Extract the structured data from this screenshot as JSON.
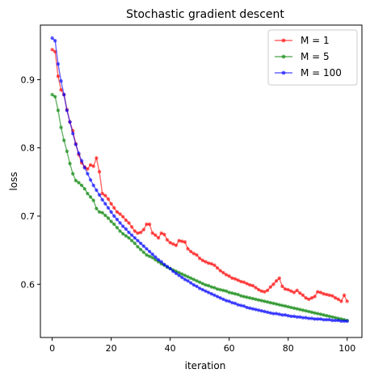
{
  "chart_data": {
    "type": "line",
    "title": "Stochastic gradient descent",
    "xlabel": "iteration",
    "ylabel": "loss",
    "xlim": [
      -4,
      105
    ],
    "ylim": [
      0.522,
      0.98
    ],
    "xticks": [
      0,
      20,
      40,
      60,
      80,
      100
    ],
    "yticks": [
      0.6,
      0.7,
      0.8,
      0.9
    ],
    "xtick_labels": [
      "0",
      "20",
      "40",
      "60",
      "80",
      "100"
    ],
    "ytick_labels": [
      "0.6",
      "0.7",
      "0.8",
      "0.9"
    ],
    "grid": false,
    "legend_position": "top-right",
    "series": [
      {
        "name": "M = 1",
        "color": "#ff0000",
        "x": [
          0,
          1,
          2,
          3,
          4,
          5,
          6,
          7,
          8,
          9,
          10,
          11,
          12,
          13,
          14,
          15,
          16,
          17,
          18,
          19,
          20,
          21,
          22,
          23,
          24,
          25,
          26,
          27,
          28,
          29,
          30,
          31,
          32,
          33,
          34,
          35,
          36,
          37,
          38,
          39,
          40,
          41,
          42,
          43,
          44,
          45,
          46,
          47,
          48,
          49,
          50,
          51,
          52,
          53,
          54,
          55,
          56,
          57,
          58,
          59,
          60,
          61,
          62,
          63,
          64,
          65,
          66,
          67,
          68,
          69,
          70,
          71,
          72,
          73,
          74,
          75,
          76,
          77,
          78,
          79,
          80,
          81,
          82,
          83,
          84,
          85,
          86,
          87,
          88,
          89,
          90,
          91,
          92,
          93,
          94,
          95,
          96,
          97,
          98,
          99,
          100
        ],
        "y": [
          0.944,
          0.941,
          0.905,
          0.885,
          0.878,
          0.856,
          0.838,
          0.825,
          0.806,
          0.79,
          0.778,
          0.772,
          0.769,
          0.775,
          0.773,
          0.785,
          0.765,
          0.733,
          0.73,
          0.725,
          0.718,
          0.712,
          0.706,
          0.703,
          0.699,
          0.694,
          0.69,
          0.684,
          0.678,
          0.675,
          0.676,
          0.68,
          0.688,
          0.688,
          0.675,
          0.672,
          0.668,
          0.675,
          0.673,
          0.665,
          0.661,
          0.659,
          0.657,
          0.664,
          0.663,
          0.662,
          0.652,
          0.648,
          0.645,
          0.643,
          0.638,
          0.635,
          0.633,
          0.631,
          0.63,
          0.628,
          0.624,
          0.62,
          0.617,
          0.614,
          0.612,
          0.609,
          0.608,
          0.606,
          0.604,
          0.603,
          0.601,
          0.599,
          0.598,
          0.595,
          0.592,
          0.59,
          0.589,
          0.591,
          0.596,
          0.6,
          0.605,
          0.609,
          0.597,
          0.593,
          0.592,
          0.59,
          0.588,
          0.591,
          0.587,
          0.584,
          0.58,
          0.578,
          0.58,
          0.582,
          0.589,
          0.588,
          0.586,
          0.585,
          0.584,
          0.583,
          0.58,
          0.578,
          0.575,
          0.584,
          0.575
        ]
      },
      {
        "name": "M = 5",
        "color": "#008000",
        "x": [
          0,
          1,
          2,
          3,
          4,
          5,
          6,
          7,
          8,
          9,
          10,
          11,
          12,
          13,
          14,
          15,
          16,
          17,
          18,
          19,
          20,
          21,
          22,
          23,
          24,
          25,
          26,
          27,
          28,
          29,
          30,
          31,
          32,
          33,
          34,
          35,
          36,
          37,
          38,
          39,
          40,
          41,
          42,
          43,
          44,
          45,
          46,
          47,
          48,
          49,
          50,
          51,
          52,
          53,
          54,
          55,
          56,
          57,
          58,
          59,
          60,
          61,
          62,
          63,
          64,
          65,
          66,
          67,
          68,
          69,
          70,
          71,
          72,
          73,
          74,
          75,
          76,
          77,
          78,
          79,
          80,
          81,
          82,
          83,
          84,
          85,
          86,
          87,
          88,
          89,
          90,
          91,
          92,
          93,
          94,
          95,
          96,
          97,
          98,
          99,
          100
        ],
        "y": [
          0.878,
          0.875,
          0.855,
          0.83,
          0.811,
          0.795,
          0.777,
          0.762,
          0.752,
          0.749,
          0.745,
          0.74,
          0.733,
          0.728,
          0.723,
          0.711,
          0.706,
          0.705,
          0.701,
          0.697,
          0.692,
          0.688,
          0.683,
          0.678,
          0.674,
          0.671,
          0.668,
          0.664,
          0.66,
          0.655,
          0.651,
          0.647,
          0.643,
          0.641,
          0.639,
          0.636,
          0.633,
          0.63,
          0.628,
          0.625,
          0.623,
          0.621,
          0.619,
          0.617,
          0.615,
          0.613,
          0.611,
          0.609,
          0.607,
          0.605,
          0.603,
          0.601,
          0.599,
          0.598,
          0.596,
          0.595,
          0.593,
          0.592,
          0.591,
          0.59,
          0.588,
          0.587,
          0.586,
          0.585,
          0.583,
          0.582,
          0.581,
          0.58,
          0.579,
          0.578,
          0.577,
          0.576,
          0.575,
          0.574,
          0.573,
          0.572,
          0.571,
          0.57,
          0.569,
          0.568,
          0.567,
          0.566,
          0.565,
          0.564,
          0.563,
          0.562,
          0.561,
          0.56,
          0.559,
          0.558,
          0.557,
          0.556,
          0.555,
          0.554,
          0.553,
          0.552,
          0.551,
          0.55,
          0.549,
          0.548,
          0.547
        ]
      },
      {
        "name": "M = 100",
        "color": "#0000ff",
        "x": [
          0,
          1,
          2,
          3,
          4,
          5,
          6,
          7,
          8,
          9,
          10,
          11,
          12,
          13,
          14,
          15,
          16,
          17,
          18,
          19,
          20,
          21,
          22,
          23,
          24,
          25,
          26,
          27,
          28,
          29,
          30,
          31,
          32,
          33,
          34,
          35,
          36,
          37,
          38,
          39,
          40,
          41,
          42,
          43,
          44,
          45,
          46,
          47,
          48,
          49,
          50,
          51,
          52,
          53,
          54,
          55,
          56,
          57,
          58,
          59,
          60,
          61,
          62,
          63,
          64,
          65,
          66,
          67,
          68,
          69,
          70,
          71,
          72,
          73,
          74,
          75,
          76,
          77,
          78,
          79,
          80,
          81,
          82,
          83,
          84,
          85,
          86,
          87,
          88,
          89,
          90,
          91,
          92,
          93,
          94,
          95,
          96,
          97,
          98,
          99,
          100
        ],
        "y": [
          0.961,
          0.957,
          0.923,
          0.898,
          0.878,
          0.855,
          0.838,
          0.821,
          0.805,
          0.792,
          0.781,
          0.771,
          0.762,
          0.753,
          0.745,
          0.738,
          0.731,
          0.724,
          0.718,
          0.712,
          0.706,
          0.7,
          0.695,
          0.69,
          0.685,
          0.681,
          0.676,
          0.672,
          0.668,
          0.664,
          0.66,
          0.656,
          0.652,
          0.648,
          0.644,
          0.64,
          0.636,
          0.633,
          0.629,
          0.626,
          0.623,
          0.619,
          0.616,
          0.613,
          0.61,
          0.607,
          0.605,
          0.602,
          0.599,
          0.597,
          0.594,
          0.592,
          0.59,
          0.588,
          0.586,
          0.584,
          0.582,
          0.58,
          0.578,
          0.576,
          0.575,
          0.573,
          0.572,
          0.57,
          0.569,
          0.568,
          0.566,
          0.565,
          0.564,
          0.563,
          0.562,
          0.561,
          0.56,
          0.559,
          0.558,
          0.557,
          0.557,
          0.556,
          0.555,
          0.555,
          0.554,
          0.553,
          0.553,
          0.552,
          0.552,
          0.551,
          0.551,
          0.55,
          0.55,
          0.549,
          0.549,
          0.549,
          0.548,
          0.548,
          0.548,
          0.547,
          0.547,
          0.547,
          0.546,
          0.546,
          0.546
        ]
      }
    ]
  }
}
